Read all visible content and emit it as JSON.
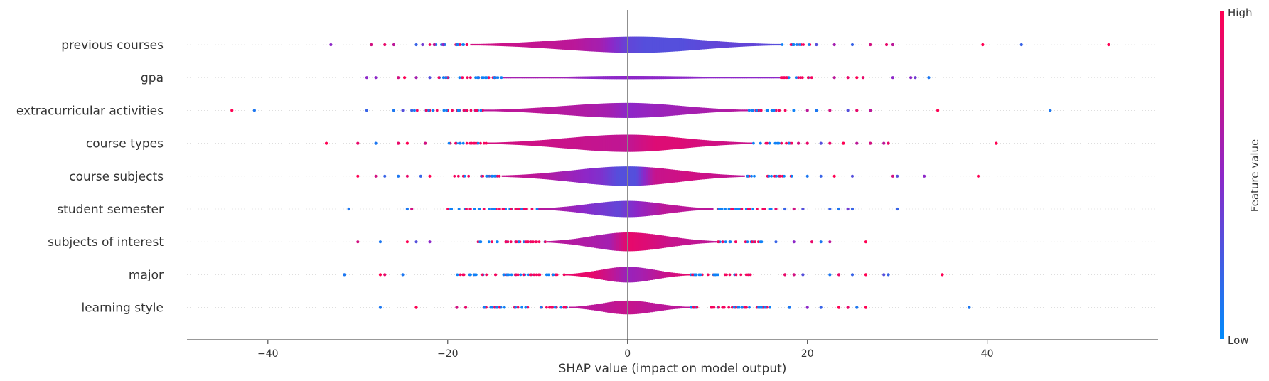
{
  "chart_data": {
    "type": "violin",
    "title": "",
    "xlabel": "SHAP value (impact on model output)",
    "xlim": [
      -49,
      59
    ],
    "xticks": [
      -40,
      -20,
      0,
      20,
      40
    ],
    "xtick_labels": [
      "−40",
      "−20",
      "0",
      "20",
      "40"
    ],
    "colorbar": {
      "label": "Feature value",
      "high_label": "High",
      "low_label": "Low",
      "high_color": "#ff0052",
      "low_color": "#008bfb"
    },
    "features": [
      {
        "name": "previous courses",
        "min": -33,
        "max": 53.5,
        "core": [
          -17.5,
          17.0
        ],
        "peak": 1.0,
        "width": 0.52,
        "dense_left": [
          -22,
          -17.5
        ],
        "dense_right": [
          17,
          20.5
        ],
        "outliers": [
          [
            -33,
            0.5
          ],
          [
            -28.5,
            0.8
          ],
          [
            -27,
            0.9
          ],
          [
            -26,
            0.7
          ],
          [
            -23.5,
            0.2
          ],
          [
            -22.8,
            0.4
          ],
          [
            -21.5,
            0.7
          ],
          [
            -20.5,
            0.5
          ],
          [
            -19,
            0.1
          ],
          [
            21,
            0.3
          ],
          [
            23,
            0.6
          ],
          [
            25,
            0.2
          ],
          [
            27,
            0.8
          ],
          [
            28.8,
            0.9
          ],
          [
            29.5,
            0.7
          ],
          [
            39.5,
            1.0
          ],
          [
            43.8,
            0.2
          ],
          [
            53.5,
            1.0
          ]
        ],
        "colors": [
          [
            -17,
            0.8
          ],
          [
            -12,
            0.75
          ],
          [
            -6,
            0.7
          ],
          [
            -3,
            0.6
          ],
          [
            0,
            0.35
          ],
          [
            2,
            0.3
          ],
          [
            6,
            0.3
          ],
          [
            10,
            0.35
          ],
          [
            14,
            0.35
          ],
          [
            17,
            0.3
          ]
        ]
      },
      {
        "name": "gpa",
        "min": -29,
        "max": 33.5,
        "core": [
          -14,
          17.5
        ],
        "peak": 0,
        "width": 0.1,
        "dense_left": [
          -21,
          -14
        ],
        "dense_right": [
          17,
          20.5
        ],
        "outliers": [
          [
            -29,
            0.5
          ],
          [
            -28,
            0.5
          ],
          [
            -25.5,
            0.8
          ],
          [
            -24.8,
            1.0
          ],
          [
            -23.5,
            0.6
          ],
          [
            -22,
            0.3
          ],
          [
            23,
            0.7
          ],
          [
            24.5,
            0.9
          ],
          [
            25.5,
            1.0
          ],
          [
            26.2,
            0.9
          ],
          [
            29.5,
            0.5
          ],
          [
            31.5,
            0.5
          ],
          [
            32,
            0.4
          ],
          [
            33.5,
            0.1
          ]
        ],
        "colors": [
          [
            -14,
            0.6
          ],
          [
            -8,
            0.6
          ],
          [
            -4,
            0.5
          ],
          [
            0,
            0.5
          ],
          [
            5,
            0.5
          ],
          [
            10,
            0.5
          ],
          [
            15,
            0.5
          ],
          [
            17,
            0.5
          ]
        ]
      },
      {
        "name": "extracurricular activities",
        "min": -44,
        "max": 47,
        "core": [
          -16,
          13.5
        ],
        "peak": 0,
        "width": 0.48,
        "dense_left": [
          -24,
          -16
        ],
        "dense_right": [
          13.5,
          18.5
        ],
        "outliers": [
          [
            -44,
            1.0
          ],
          [
            -41.5,
            0.1
          ],
          [
            -29,
            0.2
          ],
          [
            -26,
            0.1
          ],
          [
            -25,
            0.3
          ],
          [
            -24,
            0.2
          ],
          [
            20,
            0.7
          ],
          [
            21,
            0.1
          ],
          [
            22.5,
            0.8
          ],
          [
            24.5,
            0.3
          ],
          [
            25.5,
            0.9
          ],
          [
            27,
            0.7
          ],
          [
            34.5,
            1.0
          ],
          [
            47,
            0.1
          ]
        ],
        "colors": [
          [
            -16,
            0.7
          ],
          [
            -10,
            0.7
          ],
          [
            -5,
            0.65
          ],
          [
            -2,
            0.6
          ],
          [
            0,
            0.5
          ],
          [
            3,
            0.55
          ],
          [
            7,
            0.6
          ],
          [
            11,
            0.65
          ],
          [
            13.5,
            0.7
          ]
        ]
      },
      {
        "name": "course types",
        "min": -33.5,
        "max": 41,
        "core": [
          -15.5,
          14
        ],
        "peak": 0,
        "width": 0.55,
        "dense_left": [
          -21,
          -15.5
        ],
        "dense_right": [
          14,
          18.5
        ],
        "outliers": [
          [
            -33.5,
            1.0
          ],
          [
            -30,
            0.9
          ],
          [
            -28,
            0.1
          ],
          [
            -25.5,
            0.9
          ],
          [
            -24.5,
            1.0
          ],
          [
            -22.5,
            0.8
          ],
          [
            19,
            0.8
          ],
          [
            20,
            0.9
          ],
          [
            21.5,
            0.3
          ],
          [
            22.5,
            0.9
          ],
          [
            24,
            1.0
          ],
          [
            25.5,
            0.7
          ],
          [
            27,
            0.8
          ],
          [
            28.5,
            0.7
          ],
          [
            29,
            0.9
          ],
          [
            41,
            1.0
          ]
        ],
        "colors": [
          [
            -15,
            0.8
          ],
          [
            -10,
            0.78
          ],
          [
            -5,
            0.75
          ],
          [
            0,
            0.72
          ],
          [
            3,
            0.85
          ],
          [
            6,
            0.85
          ],
          [
            9,
            0.8
          ],
          [
            14,
            0.75
          ]
        ]
      },
      {
        "name": "course subjects",
        "min": -30,
        "max": 39,
        "core": [
          -14,
          13
        ],
        "peak": 0,
        "width": 0.62,
        "dense_left": [
          -19.5,
          -14
        ],
        "dense_right": [
          13,
          18.5
        ],
        "outliers": [
          [
            -30,
            1.0
          ],
          [
            -28,
            0.8
          ],
          [
            -27,
            0.2
          ],
          [
            -25.5,
            0.1
          ],
          [
            -24.5,
            0.9
          ],
          [
            -23,
            0.2
          ],
          [
            -22,
            1.0
          ],
          [
            20,
            0.1
          ],
          [
            21.5,
            0.2
          ],
          [
            23,
            1.0
          ],
          [
            25,
            0.3
          ],
          [
            29.5,
            0.8
          ],
          [
            30,
            0.3
          ],
          [
            33,
            0.5
          ],
          [
            39,
            1.0
          ]
        ],
        "colors": [
          [
            -14,
            0.75
          ],
          [
            -10,
            0.7
          ],
          [
            -6,
            0.55
          ],
          [
            -3,
            0.45
          ],
          [
            -1,
            0.3
          ],
          [
            1,
            0.3
          ],
          [
            3,
            0.75
          ],
          [
            7,
            0.8
          ],
          [
            10,
            0.75
          ],
          [
            13,
            0.7
          ]
        ]
      },
      {
        "name": "student semester",
        "min": -31,
        "max": 30,
        "core": [
          -10,
          9.5
        ],
        "peak": 0,
        "width": 0.52,
        "dense_left": [
          -20,
          -10
        ],
        "dense_right": [
          9.5,
          16
        ],
        "outliers": [
          [
            -31,
            0.1
          ],
          [
            -24.5,
            0.1
          ],
          [
            -24,
            0.8
          ],
          [
            16.5,
            0.9
          ],
          [
            17.5,
            0.2
          ],
          [
            18.5,
            0.8
          ],
          [
            19.5,
            0.3
          ],
          [
            22.5,
            0.2
          ],
          [
            23.5,
            0.1
          ],
          [
            24.5,
            0.4
          ],
          [
            25,
            0.2
          ],
          [
            30,
            0.2
          ]
        ],
        "colors": [
          [
            -10,
            0.7
          ],
          [
            -7,
            0.6
          ],
          [
            -4,
            0.45
          ],
          [
            -1,
            0.35
          ],
          [
            1,
            0.5
          ],
          [
            4,
            0.7
          ],
          [
            7,
            0.7
          ],
          [
            9.5,
            0.7
          ]
        ]
      },
      {
        "name": "subjects of interest",
        "min": -30,
        "max": 26.5,
        "core": [
          -9,
          10
        ],
        "peak": 0,
        "width": 0.6,
        "dense_left": [
          -17,
          -9
        ],
        "dense_right": [
          10,
          15
        ],
        "outliers": [
          [
            -30,
            0.8
          ],
          [
            -27.5,
            0.1
          ],
          [
            -24.5,
            1.0
          ],
          [
            -23.5,
            0.3
          ],
          [
            -22,
            0.5
          ],
          [
            16.5,
            0.2
          ],
          [
            18.5,
            0.5
          ],
          [
            20.5,
            0.9
          ],
          [
            21.5,
            0.1
          ],
          [
            22.5,
            0.7
          ],
          [
            26.5,
            1.0
          ]
        ],
        "colors": [
          [
            -9,
            0.7
          ],
          [
            -5,
            0.65
          ],
          [
            -2,
            0.6
          ],
          [
            0,
            0.9
          ],
          [
            2,
            0.85
          ],
          [
            5,
            0.75
          ],
          [
            10,
            0.7
          ]
        ]
      },
      {
        "name": "major",
        "min": -31.5,
        "max": 35,
        "core": [
          -7,
          7
        ],
        "peak": 0,
        "width": 0.5,
        "dense_left": [
          -19,
          -7
        ],
        "dense_right": [
          7,
          14
        ],
        "outliers": [
          [
            -31.5,
            0.1
          ],
          [
            -27.5,
            1.0
          ],
          [
            -27,
            0.9
          ],
          [
            -25,
            0.1
          ],
          [
            17.5,
            0.9
          ],
          [
            18.5,
            0.8
          ],
          [
            19.5,
            0.3
          ],
          [
            22.5,
            0.1
          ],
          [
            23.5,
            0.9
          ],
          [
            25,
            0.2
          ],
          [
            26.5,
            1.0
          ],
          [
            28.5,
            0.3
          ],
          [
            29,
            0.2
          ],
          [
            35,
            1.0
          ]
        ],
        "colors": [
          [
            -7,
            0.9
          ],
          [
            -4,
            0.9
          ],
          [
            -1.5,
            0.7
          ],
          [
            0,
            0.55
          ],
          [
            1.5,
            0.6
          ],
          [
            4,
            0.75
          ],
          [
            7,
            0.9
          ]
        ]
      },
      {
        "name": "learning style",
        "min": -27.5,
        "max": 38,
        "core": [
          -6.5,
          7
        ],
        "peak": 0,
        "width": 0.44,
        "dense_left": [
          -16,
          -6.5
        ],
        "dense_right": [
          7,
          16
        ],
        "outliers": [
          [
            -27.5,
            0.1
          ],
          [
            -23.5,
            1.0
          ],
          [
            -19,
            0.8
          ],
          [
            -18,
            0.9
          ],
          [
            18,
            0.1
          ],
          [
            20,
            0.5
          ],
          [
            21.5,
            0.2
          ],
          [
            23.5,
            1.0
          ],
          [
            24.5,
            0.9
          ],
          [
            25.5,
            0.1
          ],
          [
            26.5,
            1.0
          ],
          [
            38,
            0.1
          ]
        ],
        "colors": [
          [
            -6.5,
            0.7
          ],
          [
            -3,
            0.7
          ],
          [
            0,
            0.75
          ],
          [
            3,
            0.7
          ],
          [
            7,
            0.7
          ]
        ]
      }
    ]
  }
}
